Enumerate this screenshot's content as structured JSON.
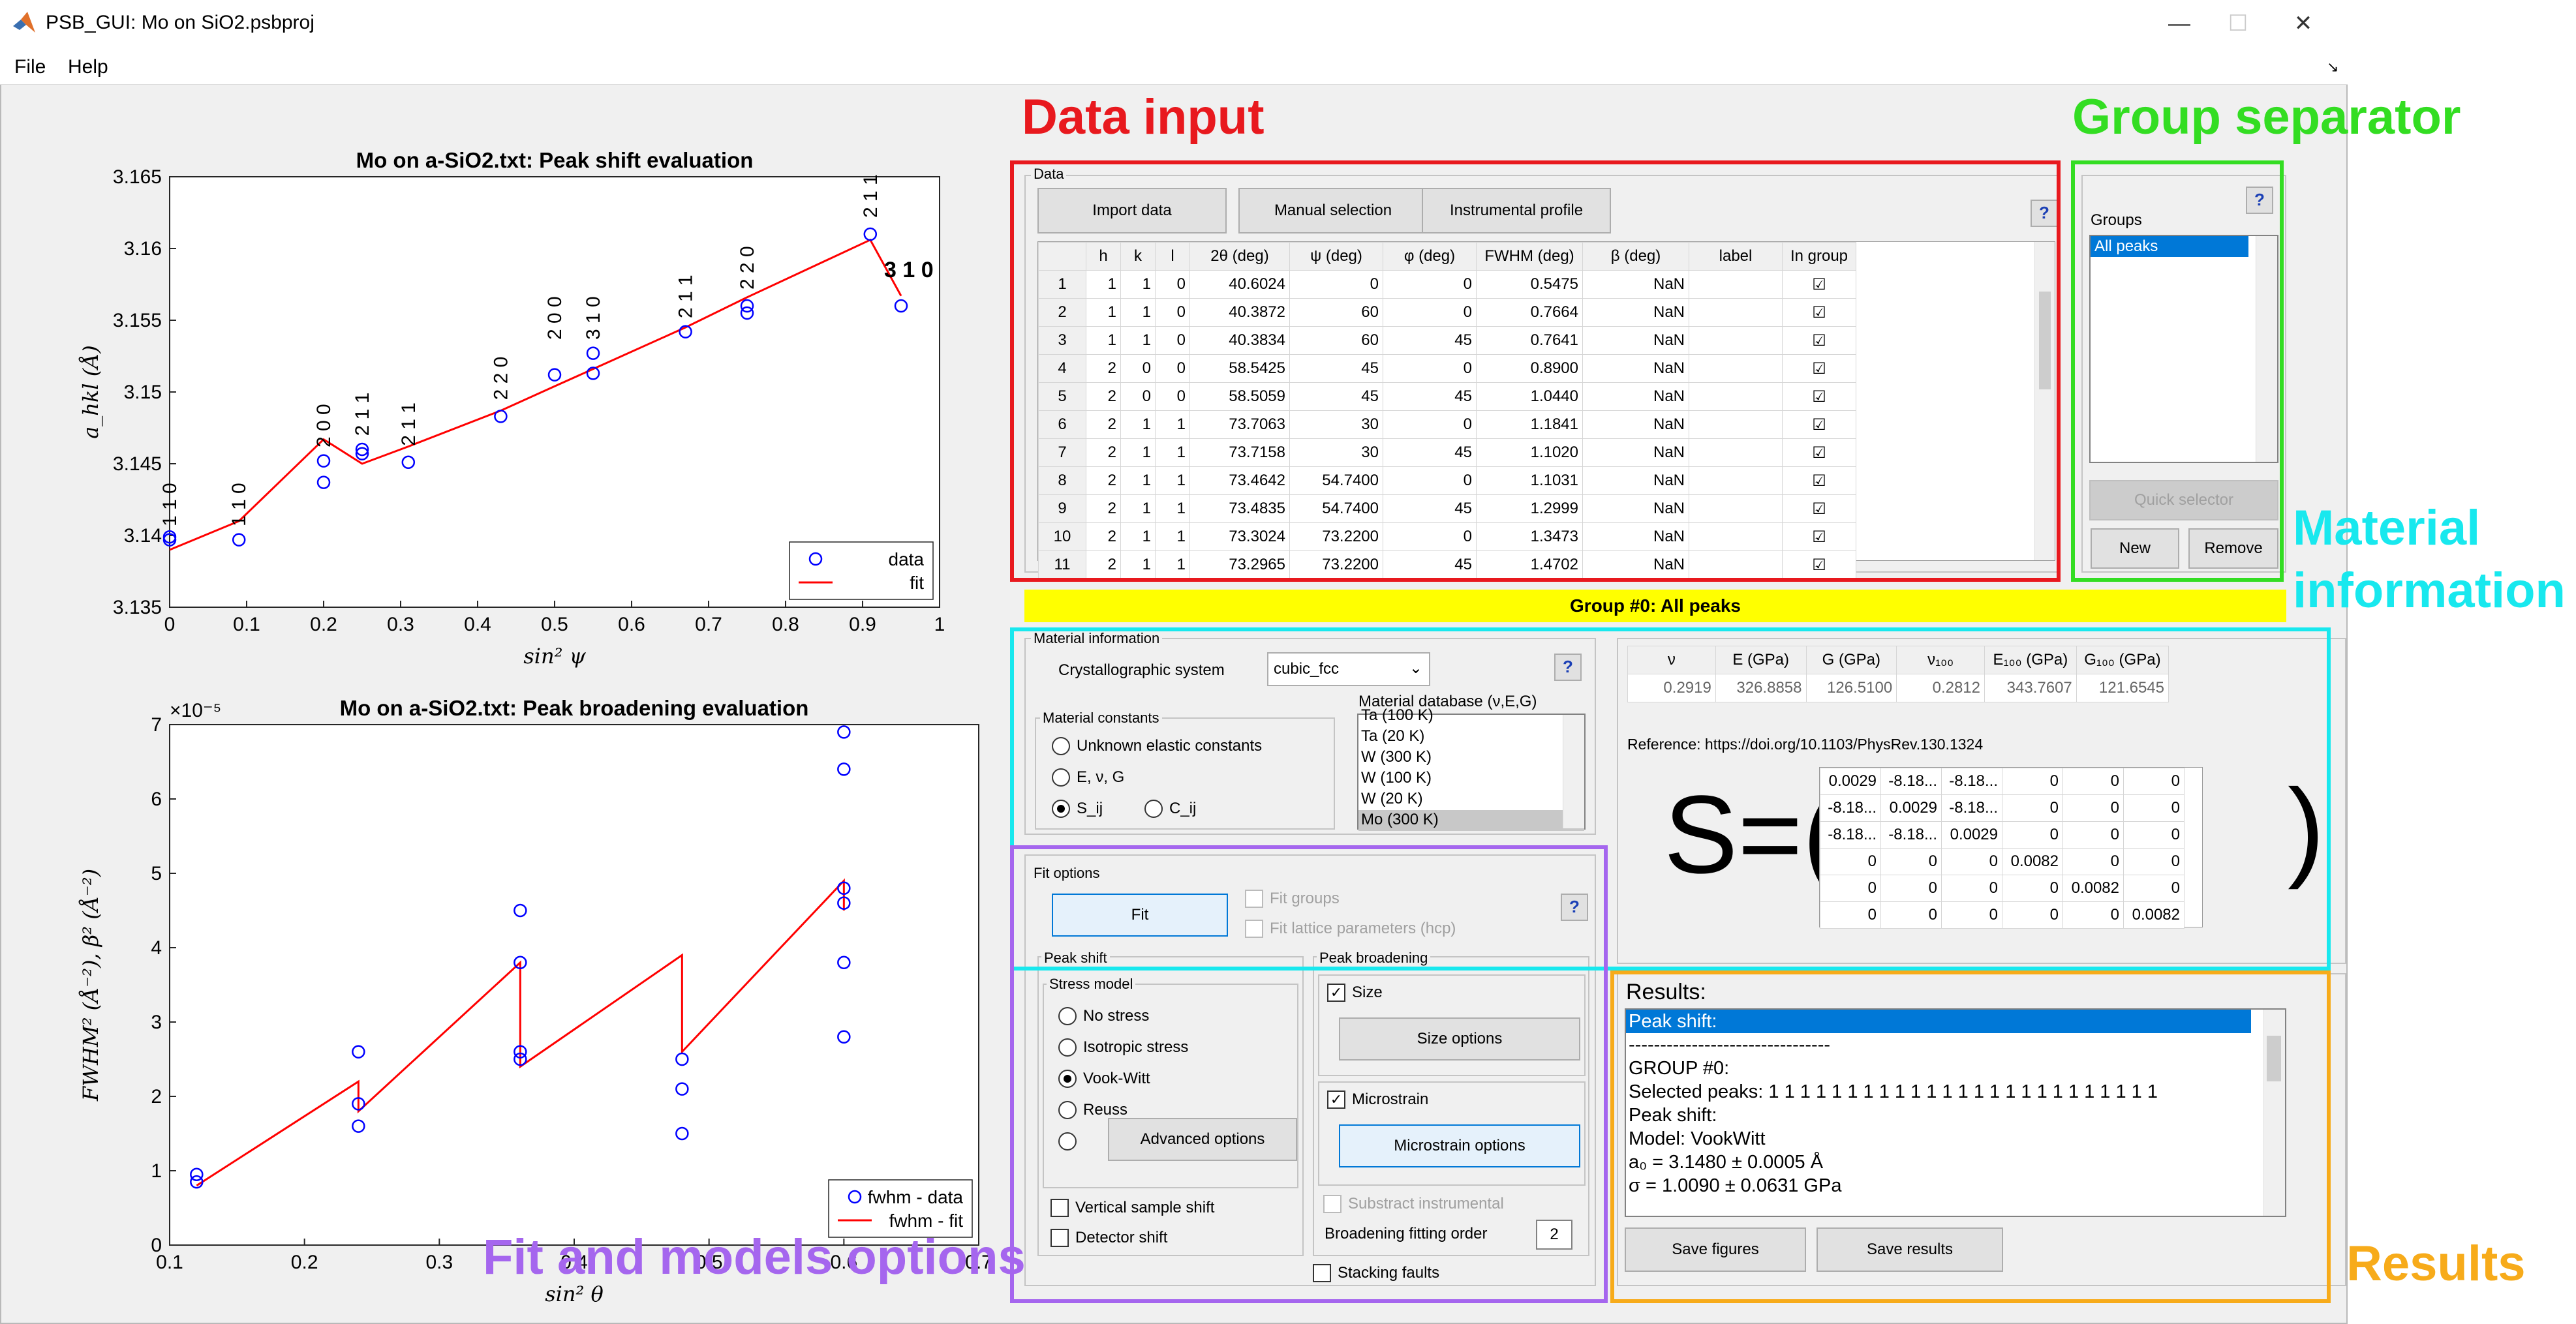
{
  "window": {
    "title": "PSB_GUI: Mo on SiO2.psbproj",
    "minimize": "—",
    "maximize": "☐",
    "close": "✕"
  },
  "menu": {
    "file": "File",
    "help": "Help"
  },
  "annotations": {
    "data_input": "Data input",
    "group_separator": "Group separator",
    "material_info_1": "Material",
    "material_info_2": "information",
    "fit_models": "Fit and models options",
    "results": "Results",
    "colors": {
      "red": "#e8191e",
      "green": "#33dd22",
      "cyan": "#18e8ee",
      "purple": "#a566ee",
      "orange": "#f7ab1a"
    }
  },
  "plot1": {
    "title": "Mo on a-SiO2.txt: Peak shift evaluation",
    "xlabel": "sin² ψ",
    "ylabel": "a_hkl (Å)",
    "xticks": [
      "0",
      "0.1",
      "0.2",
      "0.3",
      "0.4",
      "0.5",
      "0.6",
      "0.7",
      "0.8",
      "0.9",
      "1"
    ],
    "yticks": [
      "3.135",
      "3.14",
      "3.145",
      "3.15",
      "3.155",
      "3.16",
      "3.165"
    ],
    "legend": [
      "data",
      "fit"
    ]
  },
  "plot2": {
    "title": "Mo on a-SiO2.txt: Peak broadening evaluation",
    "xlabel": "sin² θ",
    "ylabel": "FWHM² (Å⁻²), β² (Å⁻²)",
    "exponent": "×10⁻⁵",
    "xticks": [
      "0.1",
      "0.2",
      "0.3",
      "0.4",
      "0.5",
      "0.6",
      "0.7"
    ],
    "yticks": [
      "0",
      "1",
      "2",
      "3",
      "4",
      "5",
      "6",
      "7"
    ],
    "legend": [
      "fwhm - data",
      "fwhm - fit"
    ]
  },
  "chart_data": [
    {
      "type": "scatter",
      "title": "Mo on a-SiO2.txt: Peak shift evaluation",
      "xlabel": "sin² ψ",
      "ylabel": "a_hkl (Å)",
      "xlim": [
        0,
        1
      ],
      "ylim": [
        3.135,
        3.165
      ],
      "series": [
        {
          "name": "data",
          "x": [
            0,
            0,
            0.09,
            0.2,
            0.2,
            0.25,
            0.25,
            0.31,
            0.43,
            0.5,
            0.55,
            0.55,
            0.67,
            0.75,
            0.75,
            0.91,
            0.95
          ],
          "y": [
            3.1397,
            3.1399,
            3.1397,
            3.1437,
            3.1452,
            3.1457,
            3.146,
            3.1451,
            3.1483,
            3.1512,
            3.1513,
            3.1527,
            3.1542,
            3.1555,
            3.156,
            3.161,
            3.156
          ]
        },
        {
          "name": "fit",
          "x": [
            0,
            0.09,
            0.2,
            0.25,
            0.31,
            0.43,
            0.5,
            0.55,
            0.67,
            0.75,
            0.91,
            0.95
          ],
          "y": [
            3.139,
            3.141,
            3.1467,
            3.145,
            3.1462,
            3.1487,
            3.1504,
            3.1516,
            3.1545,
            3.1566,
            3.1606,
            3.1567
          ]
        }
      ],
      "annotations": [
        "1 1 0",
        "2 0 0",
        "2 1 1",
        "2 2 0",
        "3 1 0"
      ],
      "legend": "bottom-right"
    },
    {
      "type": "scatter",
      "title": "Mo on a-SiO2.txt: Peak broadening evaluation",
      "xlabel": "sin² θ",
      "ylabel": "FWHM² (Å⁻²), β² (Å⁻²)",
      "xlim": [
        0.1,
        0.7
      ],
      "ylim": [
        0,
        7
      ],
      "yexponent": "×10⁻⁵",
      "series": [
        {
          "name": "fwhm - data",
          "x": [
            0.12,
            0.12,
            0.24,
            0.24,
            0.24,
            0.36,
            0.36,
            0.36,
            0.36,
            0.48,
            0.48,
            0.48,
            0.6,
            0.6,
            0.6,
            0.6,
            0.6,
            0.6
          ],
          "y": [
            0.85,
            0.95,
            1.6,
            1.9,
            2.6,
            2.5,
            2.6,
            3.8,
            4.5,
            1.5,
            2.1,
            2.5,
            2.8,
            3.8,
            4.6,
            4.8,
            6.4,
            6.9
          ]
        },
        {
          "name": "fwhm - fit",
          "x": [
            0.12,
            0.24,
            0.24,
            0.36,
            0.36,
            0.48,
            0.48,
            0.6,
            0.6
          ],
          "y": [
            0.8,
            2.2,
            1.8,
            3.8,
            2.4,
            3.9,
            2.6,
            4.9,
            4.5
          ]
        }
      ],
      "legend": "bottom-right"
    }
  ],
  "data_panel": {
    "title": "Data",
    "import_btn": "Import data",
    "manual_btn": "Manual selection",
    "instr_btn": "Instrumental profile",
    "help": "?",
    "columns": [
      "",
      "h",
      "k",
      "l",
      "2θ (deg)",
      "ψ (deg)",
      "φ (deg)",
      "FWHM (deg)",
      "β (deg)",
      "label",
      "In group"
    ],
    "rows": [
      [
        "1",
        "1",
        "1",
        "0",
        "40.6024",
        "0",
        "0",
        "0.5475",
        "NaN",
        "",
        "☑"
      ],
      [
        "2",
        "1",
        "1",
        "0",
        "40.3872",
        "60",
        "0",
        "0.7664",
        "NaN",
        "",
        "☑"
      ],
      [
        "3",
        "1",
        "1",
        "0",
        "40.3834",
        "60",
        "45",
        "0.7641",
        "NaN",
        "",
        "☑"
      ],
      [
        "4",
        "2",
        "0",
        "0",
        "58.5425",
        "45",
        "0",
        "0.8900",
        "NaN",
        "",
        "☑"
      ],
      [
        "5",
        "2",
        "0",
        "0",
        "58.5059",
        "45",
        "45",
        "1.0440",
        "NaN",
        "",
        "☑"
      ],
      [
        "6",
        "2",
        "1",
        "1",
        "73.7063",
        "30",
        "0",
        "1.1841",
        "NaN",
        "",
        "☑"
      ],
      [
        "7",
        "2",
        "1",
        "1",
        "73.7158",
        "30",
        "45",
        "1.1020",
        "NaN",
        "",
        "☑"
      ],
      [
        "8",
        "2",
        "1",
        "1",
        "73.4642",
        "54.7400",
        "0",
        "1.1031",
        "NaN",
        "",
        "☑"
      ],
      [
        "9",
        "2",
        "1",
        "1",
        "73.4835",
        "54.7400",
        "45",
        "1.2999",
        "NaN",
        "",
        "☑"
      ],
      [
        "10",
        "2",
        "1",
        "1",
        "73.3024",
        "73.2200",
        "0",
        "1.3473",
        "NaN",
        "",
        "☑"
      ],
      [
        "11",
        "2",
        "1",
        "1",
        "73.2965",
        "73.2200",
        "45",
        "1.4702",
        "NaN",
        "",
        "☑"
      ]
    ]
  },
  "groups_panel": {
    "help": "?",
    "label": "Groups",
    "items": [
      "All peaks"
    ],
    "quick_selector": "Quick selector",
    "new": "New",
    "remove": "Remove"
  },
  "group_banner": "Group #0: All peaks",
  "material": {
    "title": "Material information",
    "cryst_label": "Crystallographic system",
    "cryst_value": "cubic_fcc",
    "help": "?",
    "constants_title": "Material constants",
    "radio_unknown": "Unknown elastic constants",
    "radio_evg": "E, ν, G",
    "radio_sij": "S_ij",
    "radio_cij": "C_ij",
    "db_label": "Material database (ν,E,G)",
    "db_items": [
      "Ta (100 K)",
      "Ta (20 K)",
      "W (300 K)",
      "W (100 K)",
      "W (20 K)",
      "Mo (300 K)"
    ],
    "props_headers": [
      "ν",
      "E (GPa)",
      "G (GPa)",
      "ν₁₀₀",
      "E₁₀₀ (GPa)",
      "G₁₀₀ (GPa)"
    ],
    "props_values": [
      "0.2919",
      "326.8858",
      "126.5100",
      "0.2812",
      "343.7607",
      "121.6545"
    ],
    "reference": "Reference: https://doi.org/10.1103/PhysRev.130.1324",
    "s_label": "S=(",
    "s_close": ")",
    "s_matrix": [
      [
        "0.0029",
        "-8.18...",
        "-8.18...",
        "0",
        "0",
        "0"
      ],
      [
        "-8.18...",
        "0.0029",
        "-8.18...",
        "0",
        "0",
        "0"
      ],
      [
        "-8.18...",
        "-8.18...",
        "0.0029",
        "0",
        "0",
        "0"
      ],
      [
        "0",
        "0",
        "0",
        "0.0082",
        "0",
        "0"
      ],
      [
        "0",
        "0",
        "0",
        "0",
        "0.0082",
        "0"
      ],
      [
        "0",
        "0",
        "0",
        "0",
        "0",
        "0.0082"
      ]
    ]
  },
  "fit": {
    "title": "Fit options",
    "fit_btn": "Fit",
    "fit_groups": "Fit groups",
    "fit_lattice": "Fit lattice parameters (hcp)",
    "help": "?",
    "peak_shift": "Peak shift",
    "stress_model": "Stress model",
    "no_stress": "No stress",
    "iso_stress": "Isotropic stress",
    "vook": "Vook-Witt",
    "reuss": "Reuss",
    "advanced": "Advanced options",
    "vertical": "Vertical sample shift",
    "detector": "Detector shift",
    "peak_broad": "Peak broadening",
    "size": "Size",
    "size_opts": "Size options",
    "microstrain": "Microstrain",
    "micro_opts": "Microstrain options",
    "subtract": "Substract instrumental",
    "broad_order": "Broadening fitting order",
    "broad_order_val": "2",
    "stacking": "Stacking faults"
  },
  "results": {
    "title": "Results:",
    "lines": [
      "Peak shift:",
      "--------------------------------",
      "GROUP #0:",
      "Selected peaks: 1 1 1 1 1 1 1 1 1 1 1 1 1 1 1 1 1 1 1 1 1 1 1 1 1",
      "Peak shift:",
      "Model: VookWitt",
      "a₀ = 3.1480 ± 0.0005 Å",
      "σ = 1.0090 ± 0.0631 GPa"
    ],
    "save_figs": "Save figures",
    "save_results": "Save results"
  }
}
